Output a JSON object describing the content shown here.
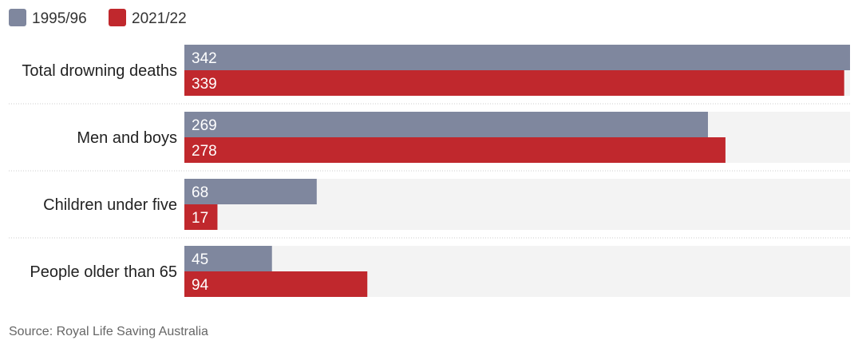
{
  "chart_data": {
    "type": "bar",
    "orientation": "horizontal",
    "categories": [
      "Total drowning deaths",
      "Men and boys",
      "Children under five",
      "People older than 65"
    ],
    "series": [
      {
        "name": "1995/96",
        "color": "#7f879e",
        "values": [
          342,
          269,
          68,
          45
        ]
      },
      {
        "name": "2021/22",
        "color": "#c0282d",
        "values": [
          339,
          278,
          17,
          94
        ]
      }
    ],
    "xlim": [
      0,
      342
    ],
    "grid": false,
    "legend_position": "top-left",
    "track_color": "#f3f3f3",
    "separator_color": "#cccccc",
    "source": "Source: Royal Life Saving Australia"
  }
}
